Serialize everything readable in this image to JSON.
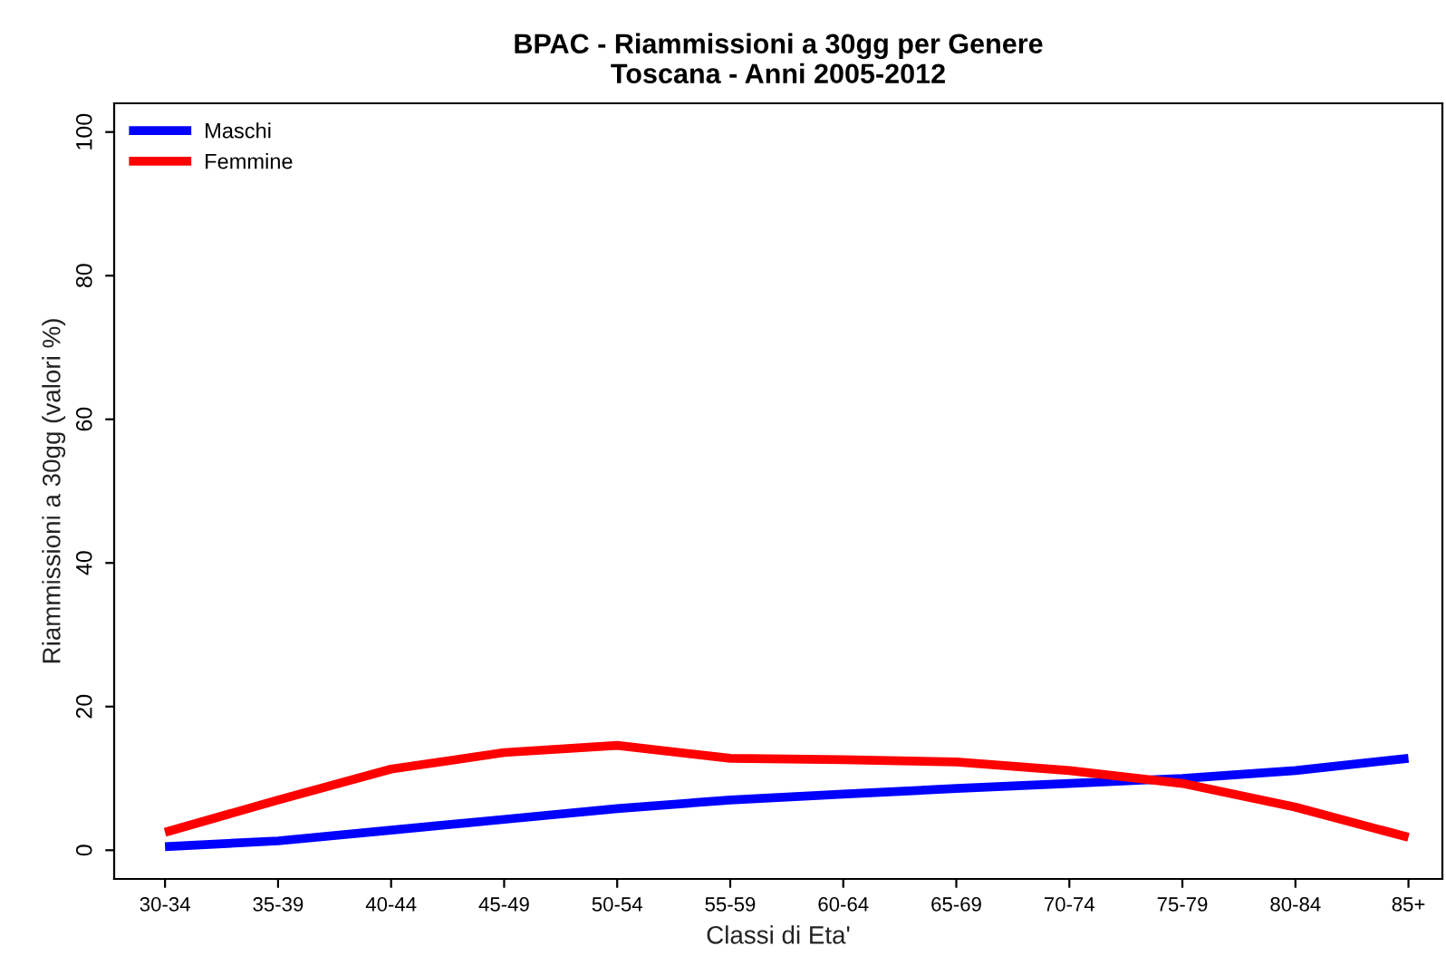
{
  "chart_data": {
    "type": "line",
    "title": "BPAC - Riammissioni a 30gg per Genere\nToscana - Anni 2005-2012",
    "xlabel": "Classi di Eta'",
    "ylabel": "Riammissioni a 30gg (valori %)",
    "categories": [
      "30-34",
      "35-39",
      "40-44",
      "45-49",
      "50-54",
      "55-59",
      "60-64",
      "65-69",
      "70-74",
      "75-79",
      "80-84",
      "85+"
    ],
    "ylim": [
      -4,
      104
    ],
    "yticks": [
      0,
      20,
      40,
      60,
      80,
      100
    ],
    "grid": false,
    "legend": "top left",
    "line_style": "solid",
    "marker": "none",
    "series": [
      {
        "name": "Maschi",
        "color": "#0000ff",
        "values": [
          0.5,
          1.3,
          2.8,
          4.3,
          5.8,
          7,
          7.8,
          8.6,
          9.3,
          10,
          11.1,
          12.8
        ]
      },
      {
        "name": "Femmine",
        "color": "#ff0000",
        "values": [
          2.5,
          7,
          11.3,
          13.6,
          14.6,
          12.8,
          12.6,
          12.3,
          11.1,
          9.3,
          6,
          1.8
        ]
      }
    ]
  }
}
